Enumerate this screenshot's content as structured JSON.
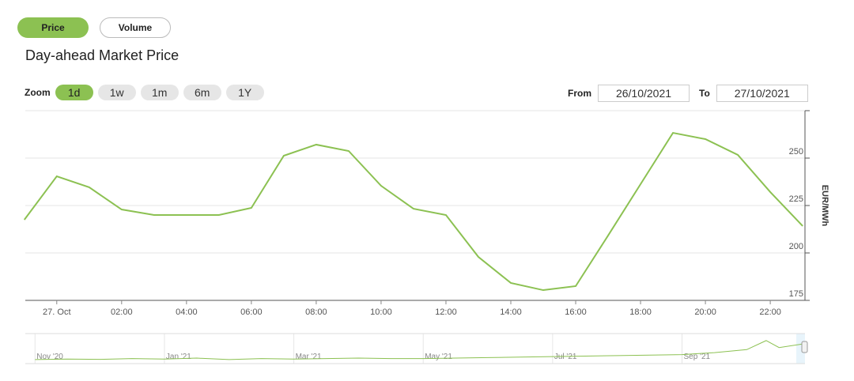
{
  "buttons": [
    "Price",
    "Volume"
  ],
  "zoom": {
    "label": "Zoom",
    "options": [
      "1d",
      "1w",
      "1m",
      "6m",
      "1Y"
    ],
    "active": 0
  },
  "range": {
    "from_label": "From",
    "from": "26/10/2021",
    "to_label": "To",
    "to": "27/10/2021"
  },
  "chart_data": {
    "type": "line",
    "title": "Day-ahead Market Price",
    "y_label": "EUR/MWh",
    "x": [
      -1,
      0,
      1,
      2,
      3,
      4,
      5,
      6,
      7,
      8,
      9,
      10,
      11,
      12,
      13,
      14,
      15,
      16,
      17,
      18,
      19,
      20,
      21,
      22,
      23
    ],
    "values": [
      217.5,
      240.4,
      234.6,
      222.9,
      220,
      220,
      220,
      223.75,
      251.25,
      257.1,
      253.75,
      235.4,
      223.3,
      220,
      197.9,
      184.2,
      180.4,
      182.5,
      209.2,
      236.25,
      263.3,
      260,
      251.7,
      232.1,
      214.2
    ],
    "xlim": [
      -0.97,
      23.07
    ],
    "xticks": [
      {
        "value": 0,
        "label": "27. Oct"
      },
      {
        "value": 2,
        "label": "02:00"
      },
      {
        "value": 4,
        "label": "04:00"
      },
      {
        "value": 6,
        "label": "06:00"
      },
      {
        "value": 8,
        "label": "08:00"
      },
      {
        "value": 10,
        "label": "10:00"
      },
      {
        "value": 12,
        "label": "12:00"
      },
      {
        "value": 14,
        "label": "14:00"
      },
      {
        "value": 16,
        "label": "16:00"
      },
      {
        "value": 18,
        "label": "18:00"
      },
      {
        "value": 20,
        "label": "20:00"
      },
      {
        "value": 22,
        "label": "22:00"
      }
    ],
    "ylim": [
      175,
      275
    ],
    "yticks": [
      175,
      200,
      225,
      250
    ],
    "grid": true,
    "color": "#8cc152"
  },
  "navigator": {
    "type": "line",
    "color": "#8cc152",
    "x": [
      0,
      0.5,
      1,
      1.5,
      2,
      2.5,
      3,
      3.5,
      4,
      4.5,
      5,
      5.5,
      6,
      6.5,
      7,
      7.5,
      8,
      8.5,
      9,
      9.5,
      10,
      10.5,
      11,
      11.3,
      11.5,
      11.9
    ],
    "values": [
      40,
      45,
      42,
      50,
      45,
      55,
      40,
      50,
      45,
      50,
      55,
      50,
      50,
      55,
      60,
      65,
      70,
      75,
      80,
      85,
      90,
      110,
      140,
      230,
      160,
      200
    ],
    "xlim": [
      -0.15,
      11.9
    ],
    "ylim": [
      0,
      300
    ],
    "xticks": [
      {
        "value": 0,
        "label": "Nov '20"
      },
      {
        "value": 2,
        "label": "Jan '21"
      },
      {
        "value": 4,
        "label": "Mar '21"
      },
      {
        "value": 6,
        "label": "May '21"
      },
      {
        "value": 8,
        "label": "Jul '21"
      },
      {
        "value": 10,
        "label": "Sep '21"
      }
    ]
  }
}
